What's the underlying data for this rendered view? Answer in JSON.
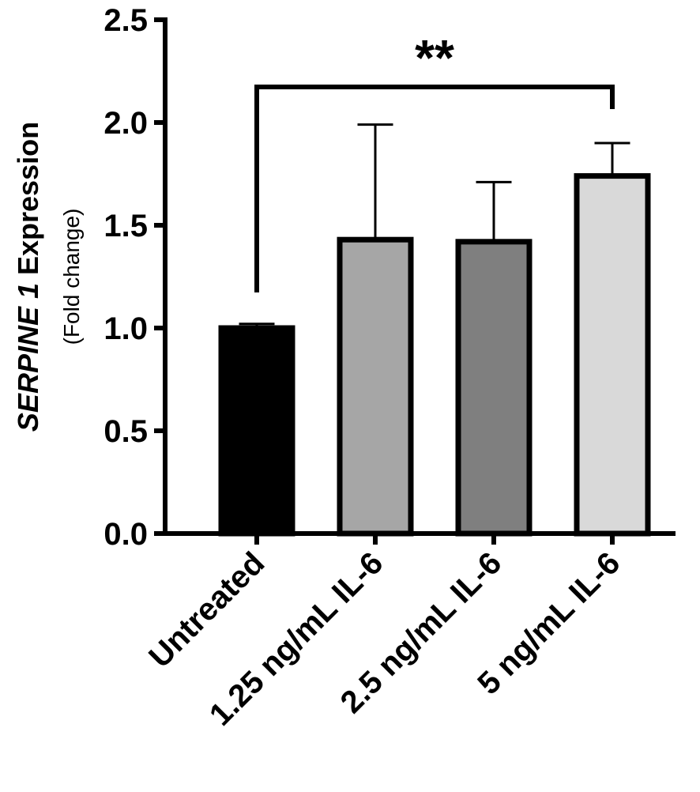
{
  "chart_data": {
    "type": "bar",
    "categories": [
      "Untreated",
      "1.25 ng/mL IL-6",
      "2.5 ng/mL IL-6",
      "5 ng/mL IL-6"
    ],
    "values": [
      1.0,
      1.43,
      1.42,
      1.74
    ],
    "errors": [
      0.02,
      0.56,
      0.29,
      0.16
    ],
    "bar_colors": [
      "#000000",
      "#a6a6a6",
      "#7f7f7f",
      "#d9d9d9"
    ],
    "ylabel_italic": "SERPINE 1",
    "ylabel_rest": " Expression",
    "ylabel_sub": "(Fold change)",
    "ylim": [
      0,
      2.5
    ],
    "yticks": [
      "0.0",
      "0.5",
      "1.0",
      "1.5",
      "2.0",
      "2.5"
    ],
    "grid": false,
    "significance": {
      "from": "Untreated",
      "to": "5 ng/mL IL-6",
      "label": "**"
    }
  }
}
